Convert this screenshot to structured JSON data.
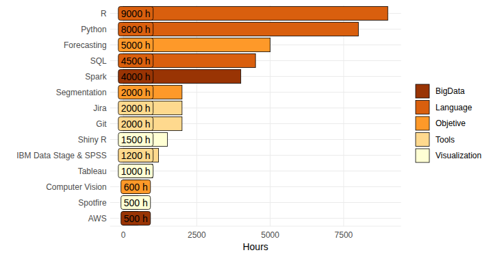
{
  "chart_data": {
    "type": "bar",
    "orientation": "horizontal",
    "x_label": "Hours",
    "categories": [
      "R",
      "Python",
      "Forecasting",
      "SQL",
      "Spark",
      "Segmentation",
      "Jira",
      "Git",
      "Shiny R",
      "IBM Data Stage & SPSS",
      "Tableau",
      "Computer Vision",
      "Spotfire",
      "AWS"
    ],
    "series": [
      {
        "name": "BigData",
        "color": "#993404",
        "values": [
          null,
          null,
          null,
          null,
          4000,
          null,
          null,
          null,
          null,
          null,
          null,
          null,
          null,
          500
        ],
        "value_labels": [
          null,
          null,
          null,
          null,
          "4000 h",
          null,
          null,
          null,
          null,
          null,
          null,
          null,
          null,
          "500 h"
        ]
      },
      {
        "name": "Language",
        "color": "#d95f0e",
        "values": [
          9000,
          8000,
          null,
          4500,
          null,
          null,
          null,
          null,
          null,
          null,
          null,
          null,
          null,
          null
        ],
        "value_labels": [
          "9000 h",
          "8000 h",
          null,
          "4500 h",
          null,
          null,
          null,
          null,
          null,
          null,
          null,
          null,
          null,
          null
        ]
      },
      {
        "name": "Objetive",
        "color": "#fe9929",
        "values": [
          null,
          null,
          5000,
          null,
          null,
          2000,
          null,
          null,
          null,
          null,
          null,
          600,
          null,
          null
        ],
        "value_labels": [
          null,
          null,
          "5000 h",
          null,
          null,
          "2000 h",
          null,
          null,
          null,
          null,
          null,
          "600 h",
          null,
          null
        ]
      },
      {
        "name": "Tools",
        "color": "#fed98e",
        "values": [
          null,
          null,
          null,
          null,
          null,
          null,
          2000,
          2000,
          null,
          1200,
          null,
          null,
          null,
          null
        ],
        "value_labels": [
          null,
          null,
          null,
          null,
          null,
          null,
          "2000 h",
          "2000 h",
          null,
          "1200 h",
          null,
          null,
          null,
          null
        ]
      },
      {
        "name": "Visualization",
        "color": "#ffffd4",
        "values": [
          null,
          null,
          null,
          null,
          null,
          null,
          null,
          null,
          1500,
          null,
          1000,
          null,
          500,
          null
        ],
        "value_labels": [
          null,
          null,
          null,
          null,
          null,
          null,
          null,
          null,
          "1500 h",
          null,
          "1000 h",
          null,
          "500 h",
          null
        ]
      }
    ],
    "xlim": [
      -450,
      9450
    ],
    "xticks": [
      0,
      2500,
      5000,
      7500
    ],
    "grid": true,
    "legend": "right",
    "data_labels": true
  }
}
